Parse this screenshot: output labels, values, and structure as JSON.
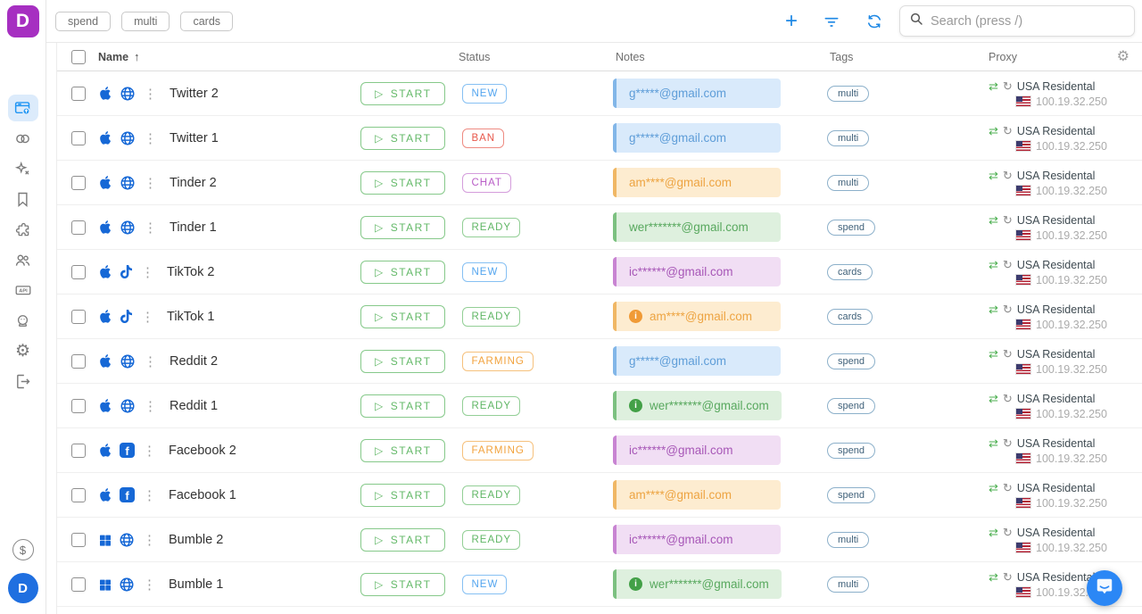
{
  "app": {
    "logo_letter": "D"
  },
  "colors": {
    "brand_purple": "#a62fc1",
    "action_blue": "#1e88e5",
    "start_green": "#64b969",
    "status": {
      "new": "#53a5ef",
      "ban": "#e8584b",
      "chat": "#b95ec7",
      "ready": "#5fb664",
      "farming": "#f2a23c"
    },
    "proxy_swap_green": "#4caf50",
    "avatar_blue": "#1f6fe0",
    "chat_fab_blue": "#2b87f5"
  },
  "icons": {
    "sort_asc": "↑",
    "menu_dots": "⋮",
    "play": "▷",
    "swap": "⇄",
    "refresh_small": "↻",
    "gear": "⚙",
    "plus": "+",
    "dollar": "$",
    "info": "i",
    "facebook_letter": "f"
  },
  "topbar": {
    "filter_chips": [
      "spend",
      "multi",
      "cards"
    ],
    "search": {
      "placeholder": "Search (press /)",
      "value": ""
    }
  },
  "sidebar": {
    "items": [
      "browser-profiles",
      "proxy-links",
      "automation",
      "bookmarks",
      "extensions",
      "team",
      "api",
      "bot",
      "settings",
      "logout"
    ],
    "active_item": "browser-profiles",
    "avatar_letter": "D"
  },
  "table": {
    "columns": {
      "name": "Name",
      "status": "Status",
      "notes": "Notes",
      "tags": "Tags",
      "proxy": "Proxy"
    },
    "sort": {
      "column": "Name",
      "direction": "asc"
    }
  },
  "start_button_label": "START",
  "rows": [
    {
      "name": "Twitter 2",
      "os_icon": "apple",
      "platform_icon": "globe",
      "status": {
        "label": "NEW",
        "variant": "blue"
      },
      "note": {
        "text": "g*****@gmail.com",
        "variant": "blue",
        "info": false
      },
      "tag": "multi",
      "proxy": {
        "name": "USA Residental",
        "ip": "100.19.32.250"
      }
    },
    {
      "name": "Twitter 1",
      "os_icon": "apple",
      "platform_icon": "globe",
      "status": {
        "label": "BAN",
        "variant": "red"
      },
      "note": {
        "text": "g*****@gmail.com",
        "variant": "blue",
        "info": false
      },
      "tag": "multi",
      "proxy": {
        "name": "USA Residental",
        "ip": "100.19.32.250"
      }
    },
    {
      "name": "Tinder 2",
      "os_icon": "apple",
      "platform_icon": "globe",
      "status": {
        "label": "CHAT",
        "variant": "purple"
      },
      "note": {
        "text": "am****@gmail.com",
        "variant": "orange",
        "info": false
      },
      "tag": "multi",
      "proxy": {
        "name": "USA Residental",
        "ip": "100.19.32.250"
      }
    },
    {
      "name": "Tinder 1",
      "os_icon": "apple",
      "platform_icon": "globe",
      "status": {
        "label": "READY",
        "variant": "green"
      },
      "note": {
        "text": "wer*******@gmail.com",
        "variant": "green",
        "info": false
      },
      "tag": "spend",
      "proxy": {
        "name": "USA Residental",
        "ip": "100.19.32.250"
      }
    },
    {
      "name": "TikTok 2",
      "os_icon": "apple",
      "platform_icon": "tiktok",
      "status": {
        "label": "NEW",
        "variant": "blue"
      },
      "note": {
        "text": "ic******@gmail.com",
        "variant": "purple",
        "info": false
      },
      "tag": "cards",
      "proxy": {
        "name": "USA Residental",
        "ip": "100.19.32.250"
      }
    },
    {
      "name": "TikTok 1",
      "os_icon": "apple",
      "platform_icon": "tiktok",
      "status": {
        "label": "READY",
        "variant": "green"
      },
      "note": {
        "text": "am****@gmail.com",
        "variant": "orange",
        "info": "orange"
      },
      "tag": "cards",
      "proxy": {
        "name": "USA Residental",
        "ip": "100.19.32.250"
      }
    },
    {
      "name": "Reddit 2",
      "os_icon": "apple",
      "platform_icon": "globe",
      "status": {
        "label": "FARMING",
        "variant": "orange"
      },
      "note": {
        "text": "g*****@gmail.com",
        "variant": "blue",
        "info": false
      },
      "tag": "spend",
      "proxy": {
        "name": "USA Residental",
        "ip": "100.19.32.250"
      }
    },
    {
      "name": "Reddit 1",
      "os_icon": "apple",
      "platform_icon": "globe",
      "status": {
        "label": "READY",
        "variant": "green"
      },
      "note": {
        "text": "wer*******@gmail.com",
        "variant": "green",
        "info": "green"
      },
      "tag": "spend",
      "proxy": {
        "name": "USA Residental",
        "ip": "100.19.32.250"
      }
    },
    {
      "name": "Facebook 2",
      "os_icon": "apple",
      "platform_icon": "facebook",
      "status": {
        "label": "FARMING",
        "variant": "orange"
      },
      "note": {
        "text": "ic******@gmail.com",
        "variant": "purple",
        "info": false
      },
      "tag": "spend",
      "proxy": {
        "name": "USA Residental",
        "ip": "100.19.32.250"
      }
    },
    {
      "name": "Facebook 1",
      "os_icon": "apple",
      "platform_icon": "facebook",
      "status": {
        "label": "READY",
        "variant": "green"
      },
      "note": {
        "text": "am****@gmail.com",
        "variant": "orange",
        "info": false
      },
      "tag": "spend",
      "proxy": {
        "name": "USA Residental",
        "ip": "100.19.32.250"
      }
    },
    {
      "name": "Bumble 2",
      "os_icon": "windows",
      "platform_icon": "globe",
      "status": {
        "label": "READY",
        "variant": "green"
      },
      "note": {
        "text": "ic******@gmail.com",
        "variant": "purple",
        "info": false
      },
      "tag": "multi",
      "proxy": {
        "name": "USA Residental",
        "ip": "100.19.32.250"
      }
    },
    {
      "name": "Bumble 1",
      "os_icon": "windows",
      "platform_icon": "globe",
      "status": {
        "label": "NEW",
        "variant": "blue"
      },
      "note": {
        "text": "wer*******@gmail.com",
        "variant": "green",
        "info": "green"
      },
      "tag": "multi",
      "proxy": {
        "name": "USA Residental",
        "ip": "100.19.32.250"
      }
    }
  ]
}
